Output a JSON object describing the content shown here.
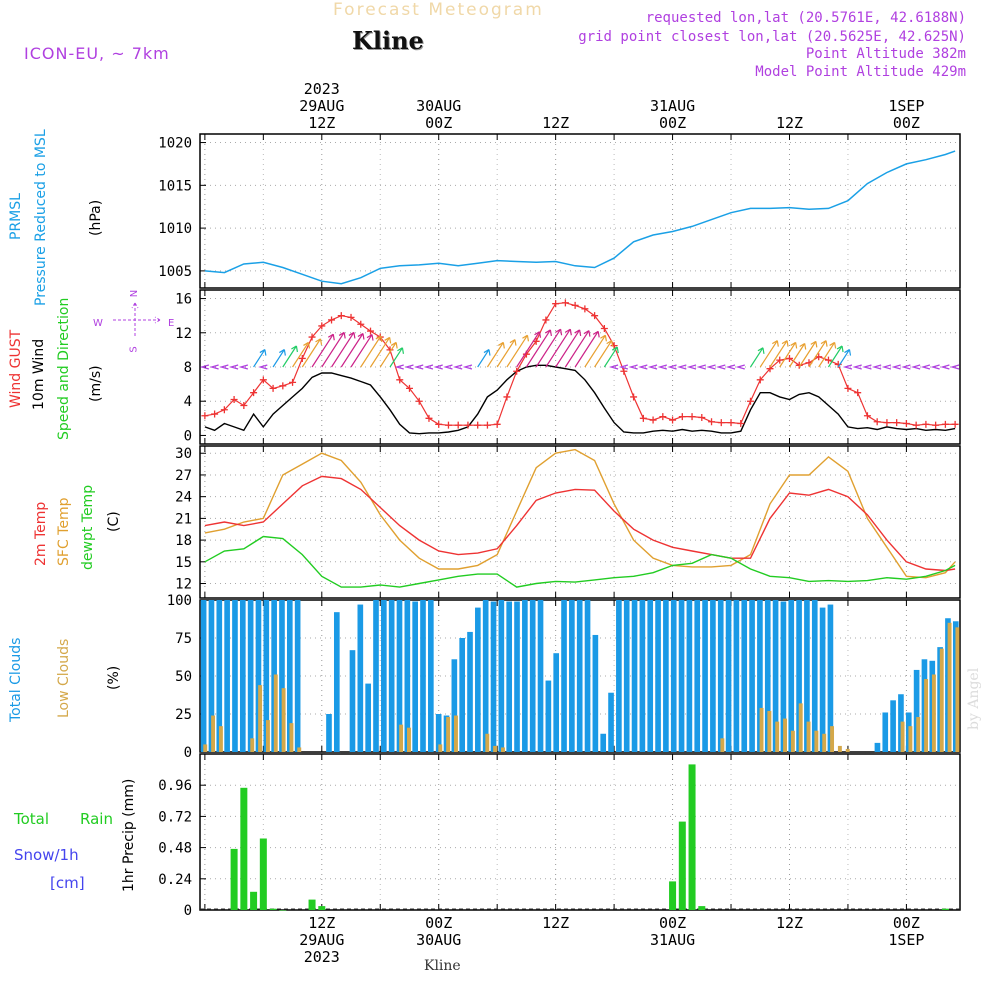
{
  "header": {
    "product": "Forecast Meteogram",
    "location": "Kline",
    "model": "ICON-EU, ~ 7km",
    "requested": "requested lon,lat (20.5761E, 42.6188N)",
    "gridpoint": "grid point closest lon,lat (20.5625E, 42.625N)",
    "point_altitude": "Point Altitude 382m",
    "model_altitude": "Model Point Altitude 429m",
    "footer_location": "Kline",
    "watermark": "by Angel"
  },
  "colors": {
    "pressure": "#1aa0e6",
    "gust": "#ee3333",
    "wind": "#000000",
    "temp": "#ee3333",
    "sfc_temp": "#e0a030",
    "dewpoint": "#22cc22",
    "total_clouds": "#1a9ae6",
    "low_clouds": "#d4a84a",
    "rain": "#22cc22",
    "snow": "#4444ee",
    "purple": "#b040e0"
  },
  "time_axis": {
    "top_labels": [
      {
        "t": 12,
        "lines": [
          "2023",
          "29AUG",
          "12Z"
        ]
      },
      {
        "t": 24,
        "lines": [
          "30AUG",
          "00Z"
        ]
      },
      {
        "t": 36,
        "lines": [
          "12Z"
        ]
      },
      {
        "t": 48,
        "lines": [
          "31AUG",
          "00Z"
        ]
      },
      {
        "t": 60,
        "lines": [
          "12Z"
        ]
      },
      {
        "t": 72,
        "lines": [
          "1SEP",
          "00Z"
        ]
      }
    ],
    "bottom_labels": [
      {
        "t": 12,
        "lines": [
          "12Z",
          "29AUG",
          "2023"
        ]
      },
      {
        "t": 24,
        "lines": [
          "00Z",
          "30AUG"
        ]
      },
      {
        "t": 36,
        "lines": [
          "12Z"
        ]
      },
      {
        "t": 48,
        "lines": [
          "00Z",
          "31AUG"
        ]
      },
      {
        "t": 60,
        "lines": [
          "12Z"
        ]
      },
      {
        "t": 72,
        "lines": [
          "00Z",
          "1SEP"
        ]
      }
    ]
  },
  "panel_labels": {
    "pressure": [
      "PRMSL",
      "Pressure Reduced to MSL",
      "(hPa)"
    ],
    "wind": [
      "Wind GUST",
      "10m Wind",
      "Speed and Direction",
      "(m/s)"
    ],
    "compass": {
      "n": "N",
      "s": "S",
      "w": "W",
      "e": "E"
    },
    "temp": [
      "2m Temp",
      "SFC Temp",
      "dewpt Temp",
      "(C)"
    ],
    "clouds": [
      "Total Clouds",
      "Low Clouds",
      "(%)"
    ],
    "precip": [
      "1hr Precip (mm)"
    ],
    "precip_legend": [
      "Total",
      "Rain",
      "Snow/1h",
      "[cm]"
    ]
  },
  "chart_data": [
    {
      "type": "line",
      "name": "pressure",
      "ylim": [
        1003,
        1021
      ],
      "yticks": [
        1005,
        1010,
        1015,
        1020
      ],
      "x_hours": [
        0,
        2,
        4,
        6,
        8,
        10,
        12,
        14,
        16,
        18,
        20,
        22,
        24,
        26,
        28,
        30,
        32,
        34,
        36,
        38,
        40,
        42,
        44,
        46,
        48,
        50,
        52,
        54,
        56,
        58,
        60,
        62,
        64,
        66,
        68,
        70,
        72,
        74,
        76,
        77
      ],
      "series": [
        {
          "values": [
            1005.0,
            1004.8,
            1005.8,
            1006.0,
            1005.4,
            1004.6,
            1003.8,
            1003.5,
            1004.2,
            1005.3,
            1005.6,
            1005.7,
            1005.9,
            1005.6,
            1005.9,
            1006.2,
            1006.1,
            1006.0,
            1006.1,
            1005.6,
            1005.4,
            1006.5,
            1008.4,
            1009.2,
            1009.6,
            1010.2,
            1011.0,
            1011.8,
            1012.3,
            1012.3,
            1012.4,
            1012.2,
            1012.3,
            1013.2,
            1015.2,
            1016.5,
            1017.5,
            1018.0,
            1018.6,
            1019.0
          ]
        }
      ]
    },
    {
      "type": "line",
      "name": "wind",
      "ylim": [
        -1,
        17
      ],
      "yticks": [
        0,
        4,
        8,
        12,
        16
      ],
      "x_hours": [
        0,
        1,
        2,
        3,
        4,
        5,
        6,
        7,
        8,
        9,
        10,
        11,
        12,
        13,
        14,
        15,
        16,
        17,
        18,
        19,
        20,
        21,
        22,
        23,
        24,
        25,
        26,
        27,
        28,
        29,
        30,
        31,
        32,
        33,
        34,
        35,
        36,
        37,
        38,
        39,
        40,
        41,
        42,
        43,
        44,
        45,
        46,
        47,
        48,
        49,
        50,
        51,
        52,
        53,
        54,
        55,
        56,
        57,
        58,
        59,
        60,
        61,
        62,
        63,
        64,
        65,
        66,
        67,
        68,
        69,
        70,
        71,
        72,
        73,
        74,
        75,
        76,
        77
      ],
      "series": [
        {
          "values": [
            2.3,
            2.5,
            3.0,
            4.2,
            3.5,
            5.0,
            6.5,
            5.5,
            5.8,
            6.2,
            9.0,
            11.5,
            12.8,
            13.5,
            14.0,
            13.8,
            13.0,
            12.2,
            11.5,
            10.0,
            6.5,
            5.5,
            4.0,
            2.0,
            1.3,
            1.2,
            1.2,
            1.2,
            1.2,
            1.2,
            1.3,
            4.5,
            7.5,
            9.5,
            11.0,
            13.5,
            15.4,
            15.5,
            15.2,
            14.8,
            14.0,
            12.5,
            10.5,
            7.5,
            4.5,
            2.0,
            1.8,
            2.2,
            1.8,
            2.2,
            2.2,
            2.1,
            1.6,
            1.5,
            1.5,
            1.4,
            4.0,
            6.5,
            7.8,
            8.8,
            9.0,
            8.2,
            8.5,
            9.2,
            8.8,
            8.3,
            5.5,
            5.0,
            2.3,
            1.6,
            1.5,
            1.5,
            1.4,
            1.2,
            1.3,
            1.2,
            1.3,
            1.3
          ]
        },
        {
          "values": [
            1.0,
            0.6,
            1.4,
            1.0,
            0.6,
            2.5,
            1.0,
            2.5,
            3.5,
            4.5,
            5.5,
            6.8,
            7.3,
            7.3,
            7.0,
            6.7,
            6.3,
            5.9,
            4.5,
            3.0,
            1.3,
            0.3,
            0.2,
            0.3,
            0.3,
            0.4,
            0.6,
            1.0,
            2.5,
            4.5,
            5.3,
            6.5,
            7.5,
            8.0,
            8.2,
            8.2,
            8.0,
            7.8,
            7.6,
            6.5,
            5.0,
            3.2,
            1.5,
            0.4,
            0.3,
            0.3,
            0.5,
            0.6,
            0.5,
            0.7,
            0.5,
            0.6,
            0.5,
            0.3,
            0.3,
            0.5,
            3.0,
            5.0,
            5.0,
            4.5,
            4.2,
            4.8,
            5.0,
            4.5,
            3.5,
            2.5,
            1.0,
            0.8,
            0.9,
            0.7,
            1.0,
            0.8,
            0.7,
            0.8,
            0.6,
            0.7,
            0.6,
            0.8
          ]
        }
      ]
    },
    {
      "type": "line",
      "name": "temperature",
      "ylim": [
        10,
        31
      ],
      "yticks": [
        12,
        15,
        18,
        21,
        24,
        27,
        30
      ],
      "x_hours": [
        0,
        2,
        4,
        6,
        8,
        10,
        12,
        14,
        16,
        18,
        20,
        22,
        24,
        26,
        28,
        30,
        32,
        34,
        36,
        38,
        40,
        42,
        44,
        46,
        48,
        50,
        52,
        54,
        56,
        58,
        60,
        62,
        64,
        66,
        68,
        70,
        72,
        74,
        76,
        77
      ],
      "series": [
        {
          "values": [
            20.0,
            20.5,
            20.0,
            20.5,
            23.0,
            25.5,
            26.8,
            26.5,
            25.0,
            22.5,
            20.0,
            18.0,
            16.5,
            16.0,
            16.2,
            16.8,
            20.0,
            23.5,
            24.5,
            25.0,
            24.9,
            22.0,
            19.5,
            18.0,
            17.0,
            16.5,
            16.0,
            15.5,
            15.5,
            21.0,
            24.5,
            24.2,
            25.0,
            24.0,
            21.5,
            18.0,
            15.0,
            14.0,
            13.8,
            14.0
          ]
        },
        {
          "values": [
            19.0,
            19.5,
            20.5,
            21.0,
            27.0,
            28.5,
            30.0,
            29.0,
            26.0,
            21.5,
            18.0,
            15.5,
            14.0,
            14.0,
            14.5,
            16.0,
            22.0,
            28.0,
            30.0,
            30.5,
            29.0,
            23.0,
            18.0,
            15.5,
            14.5,
            14.3,
            14.3,
            14.5,
            16.0,
            23.0,
            27.0,
            27.0,
            29.5,
            27.5,
            21.0,
            17.0,
            13.0,
            12.8,
            13.5,
            15.0
          ]
        },
        {
          "values": [
            15.0,
            16.5,
            16.8,
            18.5,
            18.2,
            16.0,
            13.0,
            11.5,
            11.5,
            11.8,
            11.5,
            12.0,
            12.5,
            13.0,
            13.3,
            13.3,
            11.5,
            12.0,
            12.3,
            12.2,
            12.5,
            12.8,
            13.0,
            13.5,
            14.5,
            14.8,
            16.0,
            15.5,
            14.0,
            13.0,
            12.8,
            12.3,
            12.4,
            12.3,
            12.4,
            12.8,
            12.6,
            13.0,
            13.8,
            14.5
          ]
        }
      ]
    },
    {
      "type": "bar",
      "name": "clouds",
      "ylim": [
        0,
        100
      ],
      "yticks": [
        0,
        25,
        50,
        75,
        100
      ],
      "series": [
        {
          "values": [
            100,
            100,
            100,
            100,
            100,
            100,
            100,
            100,
            100,
            100,
            100,
            100,
            100,
            0,
            0,
            0,
            25,
            92,
            0,
            67,
            97,
            45,
            100,
            100,
            100,
            100,
            100,
            99,
            100,
            100,
            25,
            24,
            61,
            75,
            79,
            95,
            100,
            99,
            100,
            99,
            99,
            100,
            100,
            100,
            47,
            65,
            100,
            100,
            100,
            100,
            77,
            12,
            39,
            100,
            100,
            100,
            100,
            100,
            100,
            100,
            100,
            100,
            100,
            100,
            100,
            100,
            100,
            100,
            100,
            100,
            100,
            100,
            100,
            100,
            99,
            100,
            100,
            100,
            100,
            95,
            97,
            0,
            0,
            0,
            0,
            0,
            6,
            26,
            34,
            38,
            26,
            54,
            61,
            60,
            69,
            88,
            86
          ]
        },
        {
          "values": [
            5,
            24,
            17,
            0,
            0,
            0,
            9,
            44,
            21,
            51,
            42,
            19,
            3,
            0,
            0,
            0,
            0,
            0,
            0,
            0,
            0,
            0,
            0,
            0,
            0,
            18,
            16,
            0,
            0,
            0,
            5,
            23,
            24,
            0,
            0,
            0,
            12,
            4,
            3,
            0,
            0,
            0,
            0,
            0,
            0,
            0,
            0,
            0,
            0,
            0,
            0,
            0,
            0,
            0,
            0,
            0,
            0,
            0,
            0,
            0,
            0,
            0,
            0,
            0,
            0,
            0,
            9,
            0,
            0,
            0,
            0,
            29,
            27,
            20,
            22,
            14,
            32,
            20,
            14,
            12,
            17,
            4,
            2,
            0,
            0,
            0,
            0,
            0,
            0,
            20,
            17,
            23,
            48,
            51,
            68,
            85,
            82
          ]
        }
      ]
    },
    {
      "type": "bar",
      "name": "precip",
      "ylim": [
        0,
        1.2
      ],
      "yticks": [
        0,
        0.24,
        0.48,
        0.72,
        0.96
      ],
      "x_hours": [
        3,
        4,
        5,
        6,
        7,
        8,
        11,
        12,
        48,
        49,
        50,
        51,
        76
      ],
      "series": [
        {
          "values": [
            0.47,
            0.94,
            0.14,
            0.55,
            0.01,
            0.0,
            0.08,
            0.03,
            0.22,
            0.68,
            1.12,
            0.03,
            0.01
          ]
        }
      ]
    },
    {
      "type": "scatter",
      "name": "wind_barbs",
      "x_hours": [
        0,
        1,
        2,
        3,
        4,
        5,
        6,
        7,
        8,
        9,
        10,
        11,
        12,
        13,
        14,
        15,
        16,
        17,
        18,
        19,
        20,
        21,
        22,
        23,
        24,
        25,
        26,
        27,
        28,
        29,
        30,
        31,
        32,
        33,
        34,
        35,
        36,
        37,
        38,
        39,
        40,
        41,
        42,
        43,
        44,
        45,
        46,
        47,
        48,
        49,
        50,
        51,
        52,
        53,
        54,
        55,
        56,
        57,
        58,
        59,
        60,
        61,
        62,
        63,
        64,
        65,
        66,
        67,
        68,
        69,
        70,
        71,
        72,
        73,
        74,
        75,
        76,
        77
      ],
      "series": [
        {
          "values": [
            1.0,
            0.6,
            1.4,
            1.0,
            0.6,
            2.5,
            1.0,
            2.5,
            3.5,
            4.5,
            5.5,
            6.8,
            7.3,
            7.3,
            7.0,
            6.7,
            6.3,
            5.9,
            4.5,
            3.0,
            1.3,
            0.3,
            0.2,
            0.3,
            0.3,
            0.4,
            0.6,
            1.0,
            2.5,
            4.5,
            5.3,
            6.5,
            7.5,
            8.0,
            8.2,
            8.2,
            8.0,
            7.8,
            7.6,
            6.5,
            5.0,
            3.2,
            1.5,
            0.4,
            0.3,
            0.3,
            0.5,
            0.6,
            0.5,
            0.7,
            0.5,
            0.6,
            0.5,
            0.3,
            0.3,
            0.5,
            3.0,
            5.0,
            5.0,
            4.5,
            4.2,
            4.8,
            5.0,
            4.5,
            3.5,
            2.5,
            1.0,
            0.8,
            0.9,
            0.7,
            1.0,
            0.8,
            0.7,
            0.8,
            0.6,
            0.7,
            0.6,
            0.8
          ]
        }
      ]
    }
  ]
}
